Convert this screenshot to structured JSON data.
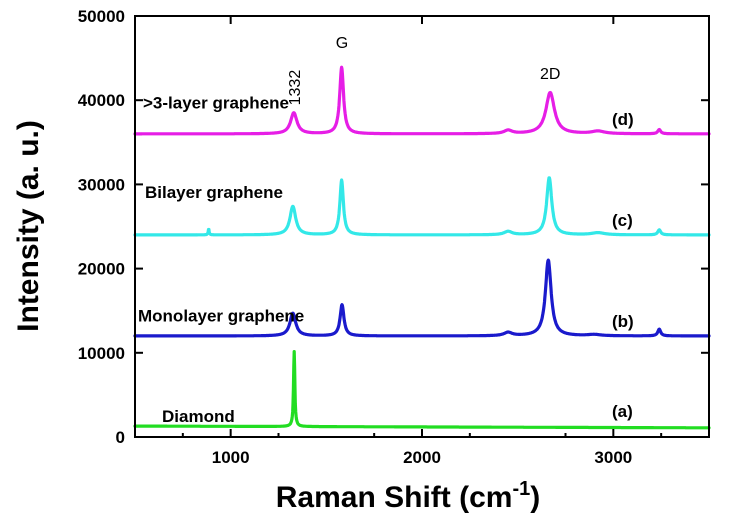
{
  "chart_data": {
    "type": "line",
    "xlabel": "Raman Shift (cm",
    "xlabel_sup": "-1",
    "xlabel_close": ")",
    "ylabel": "Intensity (a. u.)",
    "xlim": [
      500,
      3500
    ],
    "ylim": [
      0,
      50000
    ],
    "xticks": [
      1000,
      2000,
      3000
    ],
    "yticks": [
      0,
      10000,
      20000,
      30000,
      40000,
      50000
    ],
    "ytick_labels": [
      "0",
      "10000",
      "20000",
      "30000",
      "40000",
      "50000"
    ],
    "xtick_labels": [
      "1000",
      "2000",
      "3000"
    ],
    "series": [
      {
        "name": "Diamond",
        "marker": "(a)",
        "color": "#22dd22",
        "baseline": 1300,
        "peaks": [
          [
            1332,
            10200,
            4
          ]
        ]
      },
      {
        "name": "Monolayer graphene",
        "marker": "(b)",
        "color": "#1a1acc",
        "baseline": 12000,
        "peaks": [
          [
            1325,
            14700,
            18
          ],
          [
            1582,
            15700,
            12
          ],
          [
            2450,
            12400,
            25
          ],
          [
            2660,
            21000,
            18
          ],
          [
            2900,
            12150,
            40
          ],
          [
            3240,
            12800,
            9
          ]
        ]
      },
      {
        "name": "Bilayer graphene",
        "marker": "(c)",
        "color": "#33e8e8",
        "baseline": 24000,
        "peaks": [
          [
            885,
            24700,
            3
          ],
          [
            1325,
            27400,
            18
          ],
          [
            1580,
            30500,
            11
          ],
          [
            2450,
            24400,
            25
          ],
          [
            2665,
            30800,
            16
          ],
          [
            2920,
            24250,
            40
          ],
          [
            3240,
            24600,
            9
          ]
        ]
      },
      {
        "name": ">3-layer graphene",
        "marker": "(d)",
        "color": "#e61ee6",
        "baseline": 36000,
        "peaks": [
          [
            1330,
            38500,
            20
          ],
          [
            1580,
            43900,
            12
          ],
          [
            2450,
            36400,
            25
          ],
          [
            2670,
            40900,
            27
          ],
          [
            2920,
            36300,
            40
          ],
          [
            3240,
            36500,
            9
          ]
        ]
      }
    ],
    "peak_annotations": [
      {
        "label": "1332",
        "x": 1332,
        "y": 41500,
        "rotate": true
      },
      {
        "label": "G",
        "x": 1582,
        "y": 46200,
        "rotate": false
      },
      {
        "label": "2D",
        "x": 2670,
        "y": 42500,
        "rotate": false
      }
    ]
  }
}
